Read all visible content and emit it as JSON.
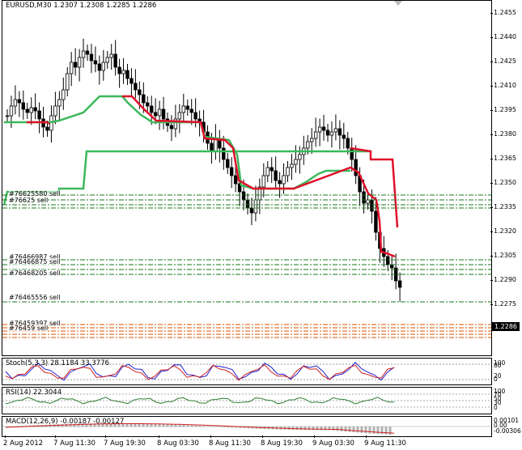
{
  "main": {
    "symbol_header": "EURUSD,M30  1.2307 1.2308 1.2285 1.2286",
    "current_price": "1.2286",
    "y_axis": [
      "1.2455",
      "1.2440",
      "1.2425",
      "1.2410",
      "1.2395",
      "1.2380",
      "1.2365",
      "1.2350",
      "1.2335",
      "1.2320",
      "1.2305",
      "1.2290",
      "1.2275"
    ],
    "orders": [
      {
        "label": "#76625580 sell",
        "color": "#1a7a1a"
      },
      {
        "label": "#76625 sell",
        "color": "#1a7a1a"
      },
      {
        "label": "#76466987 sell",
        "color": "#1a7a1a"
      },
      {
        "label": "#76466875 sell",
        "color": "#1a7a1a"
      },
      {
        "label": "#76468205 sell",
        "color": "#1a7a1a"
      },
      {
        "label": "#76465556 sell",
        "color": "#1a7a1a"
      },
      {
        "label": "#76459397 sell",
        "color": "#d85000"
      },
      {
        "label": "#76459 sell",
        "color": "#d85000"
      }
    ]
  },
  "stochastic": {
    "label": "Stoch(5,3,3) 28.1184 33.3776",
    "y_axis": [
      "100",
      "80",
      "20",
      "0"
    ]
  },
  "rsi": {
    "label": "RSI(14) 22.3044",
    "y_axis": [
      "100",
      "70",
      "50",
      "30",
      "0"
    ]
  },
  "macd": {
    "label": "MACD(12,26,9) -0.00187 -0.00127",
    "y_axis": [
      "0.00101",
      "0.00",
      "-0.00306"
    ]
  },
  "time_axis": [
    "2 Aug 2012",
    "7 Aug 11:30",
    "7 Aug 19:30",
    "8 Aug 03:30",
    "8 Aug 11:30",
    "8 Aug 19:30",
    "9 Aug 03:30",
    "9 Aug 11:30"
  ],
  "colors": {
    "bull": "#000000",
    "bear": "#000000",
    "stop_green": "#3cb85c",
    "stop_red": "#e0102a",
    "order_green": "#1a7a1a",
    "order_orange": "#d85000",
    "stoch_main": "#2020d0",
    "stoch_signal": "#d02020",
    "rsi": "#2e7d32",
    "macd_hist": "#b0b0b0",
    "macd_signal": "#d02020"
  }
}
